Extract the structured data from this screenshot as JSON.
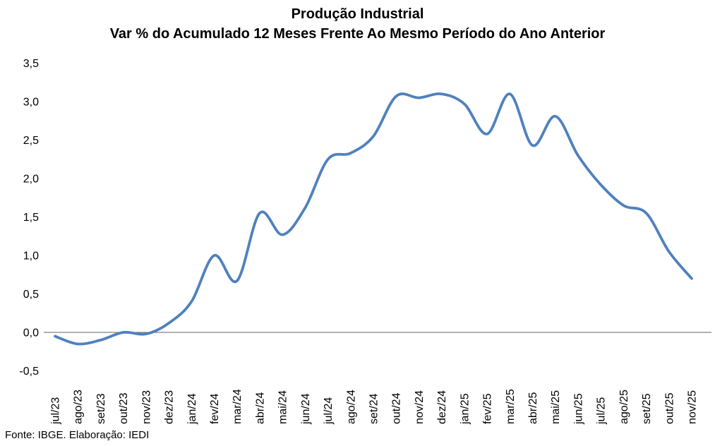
{
  "footer": {
    "source": "Fonte: IBGE. Elaboração: IEDI"
  },
  "chart_data": {
    "type": "line",
    "title": "Produção Industrial",
    "subtitle": "Var % do Acumulado 12 Meses Frente Ao Mesmo Período do Ano Anterior",
    "categories": [
      "jul/23",
      "ago/23",
      "set/23",
      "out/23",
      "nov/23",
      "dez/23",
      "jan/24",
      "fev/24",
      "mar/24",
      "abr/24",
      "mai/24",
      "jun/24",
      "jul/24",
      "ago/24",
      "set/24",
      "out/24",
      "nov/24",
      "dez/24",
      "jan/25",
      "fev/25",
      "mar/25",
      "abr/25",
      "mai/25",
      "jun/25",
      "jul/25",
      "ago/25",
      "set/25",
      "out/25",
      "nov/25"
    ],
    "series": [
      {
        "name": "Var % acumulado 12 meses",
        "values": [
          -0.05,
          -0.15,
          -0.1,
          0.0,
          -0.02,
          0.12,
          0.4,
          1.0,
          0.67,
          1.55,
          1.27,
          1.62,
          2.25,
          2.33,
          2.55,
          3.07,
          3.05,
          3.1,
          2.97,
          2.58,
          3.1,
          2.43,
          2.81,
          2.3,
          1.92,
          1.65,
          1.55,
          1.05,
          0.7
        ]
      }
    ],
    "xlabel": "",
    "ylabel": "",
    "ylim": [
      -0.5,
      3.5
    ],
    "ytick_values": [
      3.5,
      3.0,
      2.5,
      2.0,
      1.5,
      1.0,
      0.5,
      0.0,
      -0.5
    ],
    "ytick_labels": [
      "3,5",
      "3,0",
      "2,5",
      "2,0",
      "1,5",
      "1,0",
      "0,5",
      "0,0",
      "-0,5"
    ],
    "grid": false,
    "legend_position": "none",
    "line_color": "#4F81BD",
    "axis_color": "#666666",
    "smooth": true
  }
}
